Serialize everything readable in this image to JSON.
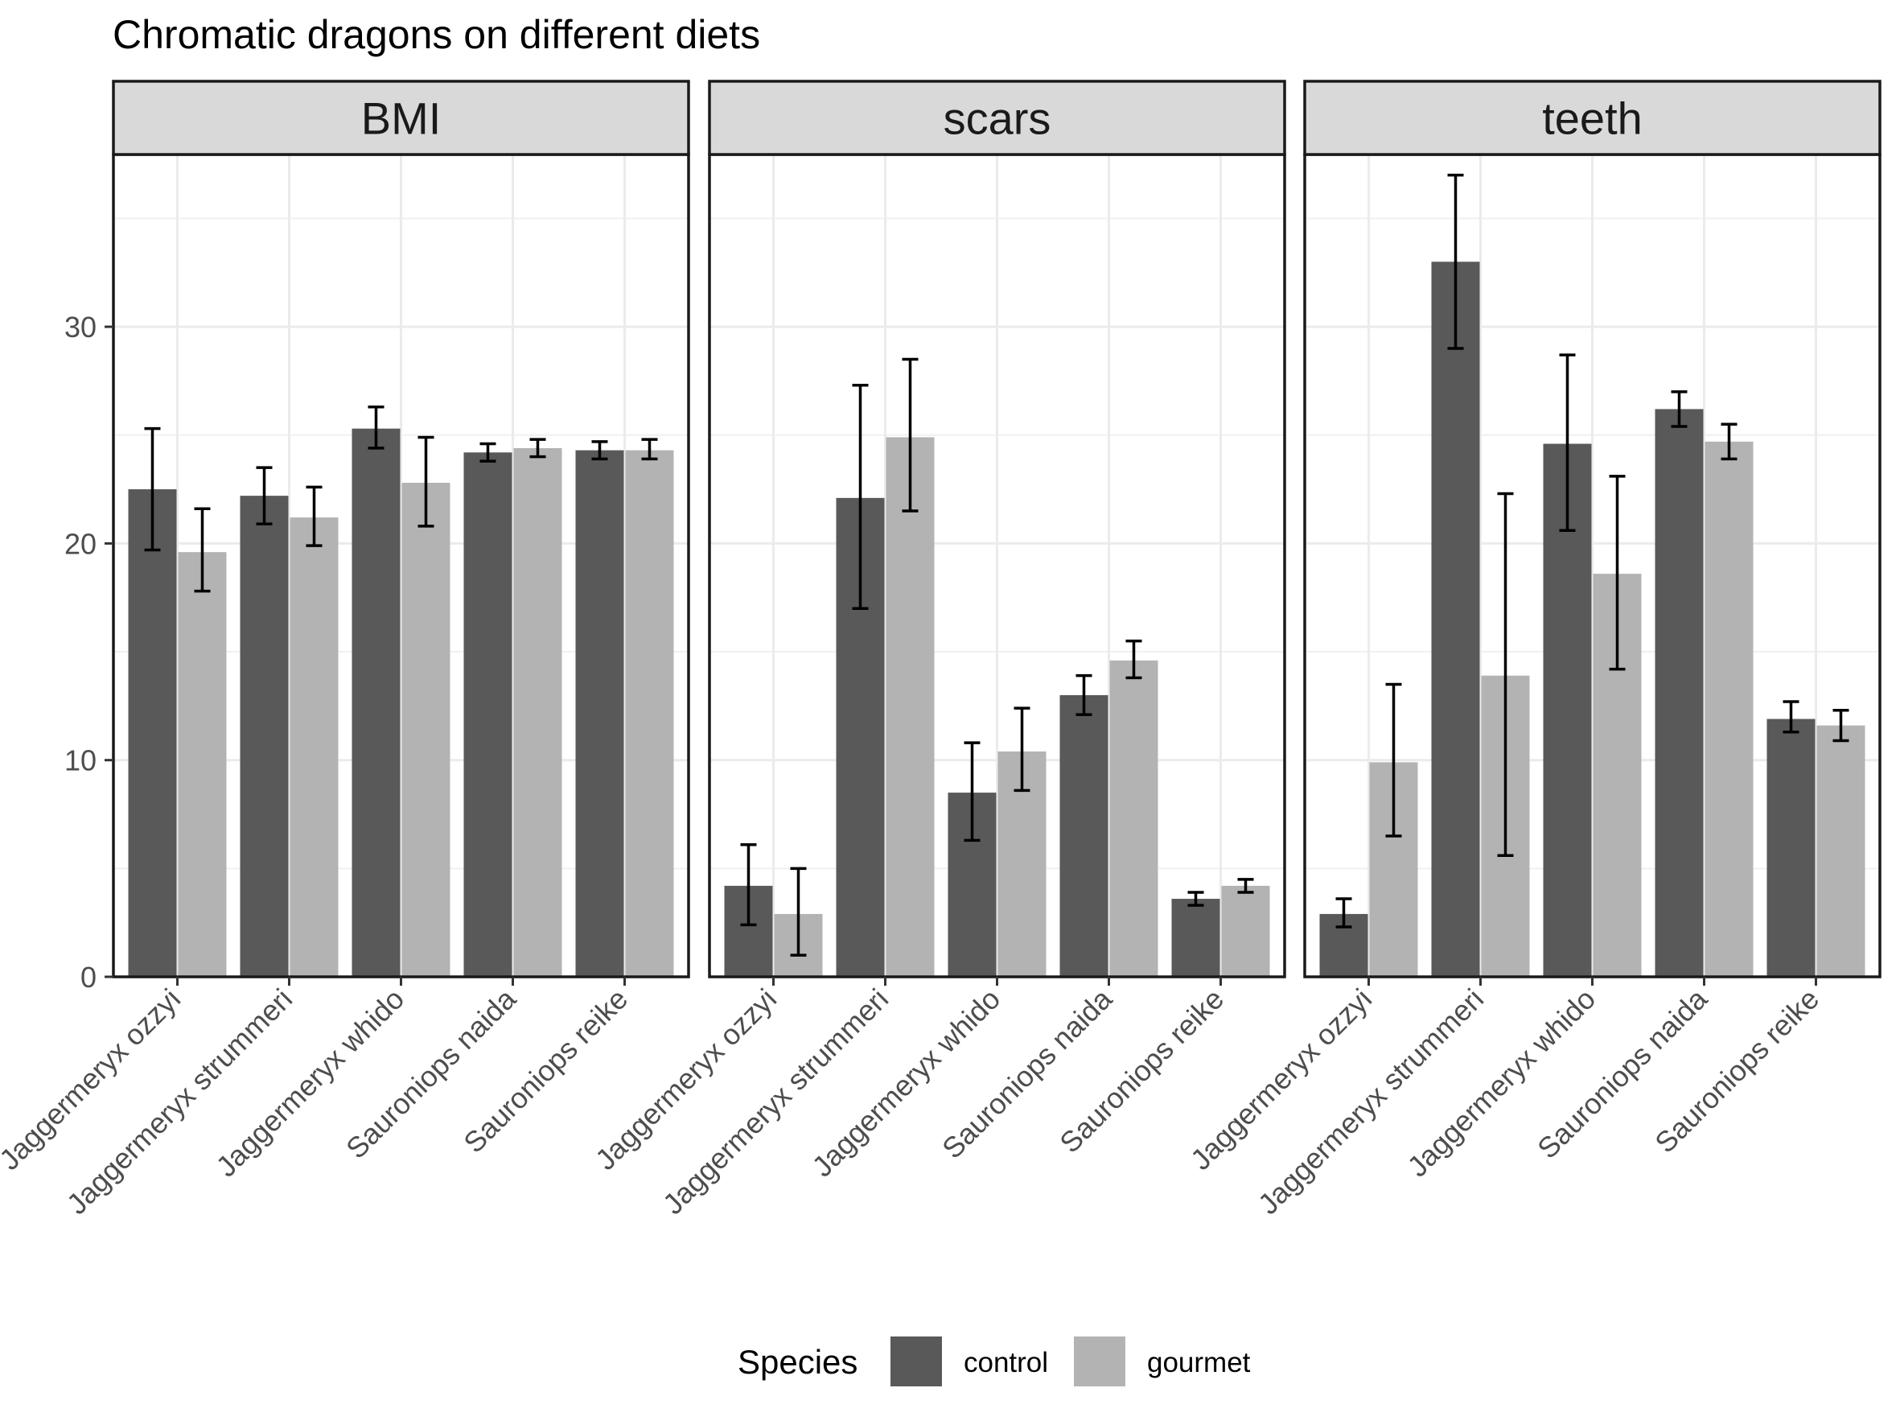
{
  "chart_data": {
    "type": "bar",
    "title": "Chromatic dragons on different diets",
    "xlabel": "",
    "ylabel": "",
    "ylim": [
      0,
      38
    ],
    "yticks": [
      0,
      10,
      20,
      30
    ],
    "grid": true,
    "legend": {
      "title": "Species",
      "position": "bottom",
      "entries": [
        {
          "label": "control",
          "color": "#595959"
        },
        {
          "label": "gourmet",
          "color": "#b3b3b3"
        }
      ]
    },
    "categories": [
      "Jaggermeryx ozzyi",
      "Jaggermeryx strummeri",
      "Jaggermeryx whido",
      "Sauroniops naida",
      "Sauroniops reike"
    ],
    "facets": [
      {
        "name": "BMI",
        "series": [
          {
            "name": "control",
            "values": [
              22.5,
              22.2,
              25.3,
              24.2,
              24.3
            ],
            "error_low": [
              19.7,
              20.9,
              24.4,
              23.8,
              23.9
            ],
            "error_high": [
              25.3,
              23.5,
              26.3,
              24.6,
              24.7
            ]
          },
          {
            "name": "gourmet",
            "values": [
              19.6,
              21.2,
              22.8,
              24.4,
              24.3
            ],
            "error_low": [
              17.8,
              19.9,
              20.8,
              24.0,
              23.9
            ],
            "error_high": [
              21.6,
              22.6,
              24.9,
              24.8,
              24.8
            ]
          }
        ]
      },
      {
        "name": "scars",
        "series": [
          {
            "name": "control",
            "values": [
              4.2,
              22.1,
              8.5,
              13.0,
              3.6
            ],
            "error_low": [
              2.4,
              17.0,
              6.3,
              12.1,
              3.3
            ],
            "error_high": [
              6.1,
              27.3,
              10.8,
              13.9,
              3.9
            ]
          },
          {
            "name": "gourmet",
            "values": [
              2.9,
              24.9,
              10.4,
              14.6,
              4.2
            ],
            "error_low": [
              1.0,
              21.5,
              8.6,
              13.8,
              3.9
            ],
            "error_high": [
              5.0,
              28.5,
              12.4,
              15.5,
              4.5
            ]
          }
        ]
      },
      {
        "name": "teeth",
        "series": [
          {
            "name": "control",
            "values": [
              2.9,
              33.0,
              24.6,
              26.2,
              11.9
            ],
            "error_low": [
              2.3,
              29.0,
              20.6,
              25.4,
              11.3
            ],
            "error_high": [
              3.6,
              37.0,
              28.7,
              27.0,
              12.7
            ]
          },
          {
            "name": "gourmet",
            "values": [
              9.9,
              13.9,
              18.6,
              24.7,
              11.6
            ],
            "error_low": [
              6.5,
              5.6,
              14.2,
              23.9,
              10.9
            ],
            "error_high": [
              13.5,
              22.3,
              23.1,
              25.5,
              12.3
            ]
          }
        ]
      }
    ]
  }
}
